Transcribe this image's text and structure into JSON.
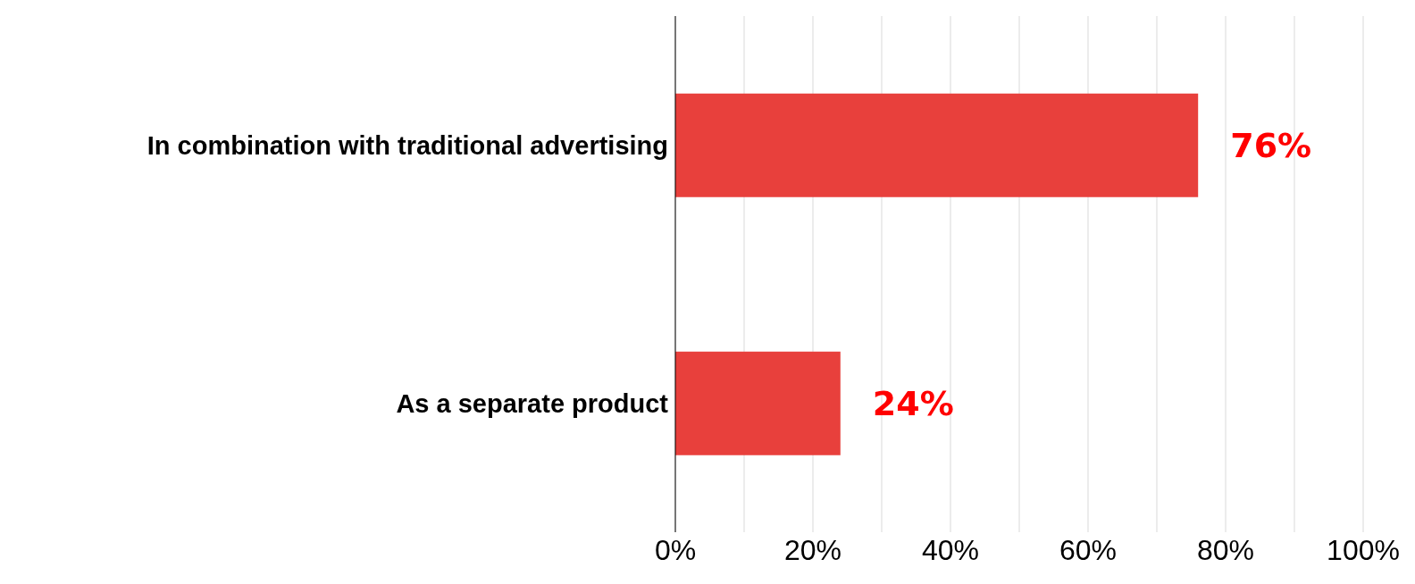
{
  "chart_data": {
    "type": "bar",
    "orientation": "horizontal",
    "categories": [
      "In combination with traditional advertising",
      "As a separate product"
    ],
    "values": [
      76,
      24
    ],
    "color": "#e8403c",
    "value_labels": [
      "76%",
      "24%"
    ],
    "xlim": [
      0,
      100
    ],
    "xticks": [
      {
        "value": 0,
        "label": "0%"
      },
      {
        "value": 10,
        "label": null
      },
      {
        "value": 20,
        "label": "20%"
      },
      {
        "value": 30,
        "label": null
      },
      {
        "value": 40,
        "label": "40%"
      },
      {
        "value": 50,
        "label": null
      },
      {
        "value": 60,
        "label": "60%"
      },
      {
        "value": 70,
        "label": null
      },
      {
        "value": 80,
        "label": "80%"
      },
      {
        "value": 90,
        "label": null
      },
      {
        "value": 100,
        "label": "100%"
      }
    ],
    "grid": "x"
  }
}
